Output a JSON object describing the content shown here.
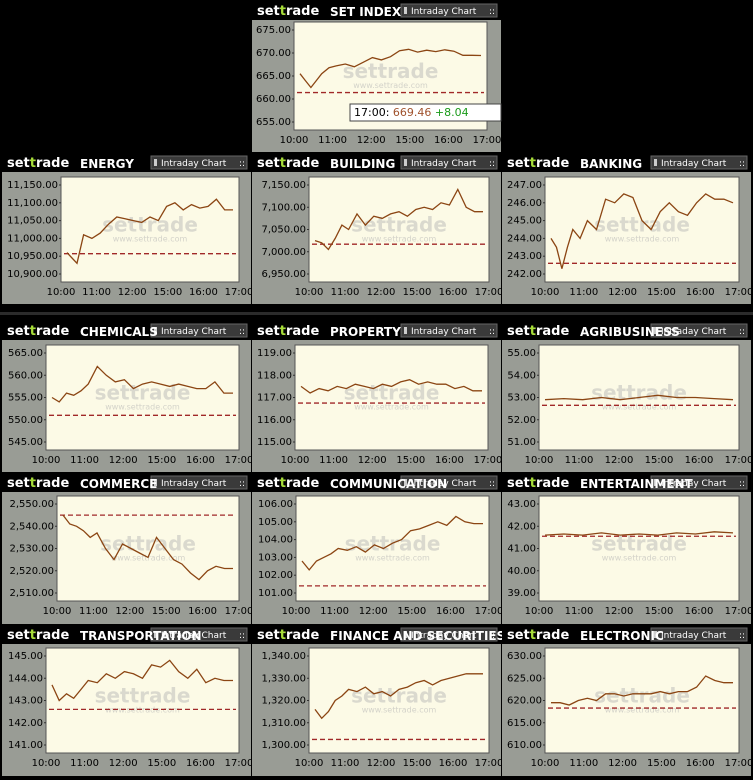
{
  "app": {
    "logo_prefix": "set",
    "logo_accent": "t",
    "logo_suffix": "rade",
    "button_label": "Intraday Chart",
    "watermark": "settrade",
    "watermark_url": "www.settrade.com"
  },
  "colors": {
    "background": "#000000",
    "panel": "#999c95",
    "plot_bg": "#fcfae6",
    "line": "#8b4513",
    "prior_close": "#a02828",
    "logo_accent": "#a8dd3a",
    "change_positive": "#1a9a1a"
  },
  "tooltip": {
    "time": "17:00",
    "value": "669.46",
    "change": "+8.04"
  },
  "chart_data": [
    {
      "title": "SET INDEX",
      "type": "line",
      "xticks": [
        "10:00",
        "11:00",
        "12:00",
        "15:00",
        "16:00",
        "17:00"
      ],
      "yticks": [
        "675.00",
        "670.00",
        "665.00",
        "660.00",
        "655.00"
      ],
      "ylim": [
        655,
        675
      ],
      "prior_close": 661.4,
      "x": [
        0,
        0.03,
        0.06,
        0.09,
        0.12,
        0.16,
        0.2,
        0.25,
        0.3,
        0.35,
        0.4,
        0.45,
        0.5,
        0.55,
        0.6,
        0.65,
        0.7,
        0.75,
        0.8,
        0.85,
        0.9,
        0.95,
        1
      ],
      "y": [
        665.5,
        664,
        662.5,
        664,
        665.5,
        666.8,
        667.2,
        667.6,
        667,
        668,
        669,
        668.5,
        669.2,
        670.5,
        670.8,
        670.2,
        670.6,
        670.3,
        670.7,
        670.4,
        669.5,
        669.5,
        669.46
      ]
    },
    {
      "title": "ENERGY",
      "type": "line",
      "xticks": [
        "10:00",
        "11:00",
        "12:00",
        "15:00",
        "16:00",
        "17:00"
      ],
      "yticks": [
        "11,150.00",
        "11,100.00",
        "11,050.00",
        "11,000.00",
        "10,950.00",
        "10,900.00"
      ],
      "ylim": [
        10900,
        11150
      ],
      "prior_close": 10957,
      "x": [
        0,
        0.03,
        0.06,
        0.1,
        0.15,
        0.2,
        0.25,
        0.3,
        0.35,
        0.4,
        0.45,
        0.5,
        0.55,
        0.6,
        0.65,
        0.7,
        0.75,
        0.8,
        0.85,
        0.9,
        0.95,
        1
      ],
      "y": [
        10960,
        10945,
        10930,
        11010,
        11000,
        11015,
        11040,
        11060,
        11055,
        11050,
        11045,
        11060,
        11050,
        11090,
        11100,
        11080,
        11095,
        11085,
        11090,
        11110,
        11080,
        11080
      ]
    },
    {
      "title": "BUILDING",
      "type": "line",
      "xticks": [
        "10:00",
        "11:00",
        "12:00",
        "15:00",
        "16:00",
        "17:00"
      ],
      "yticks": [
        "7,150.00",
        "7,100.00",
        "7,050.00",
        "7,000.00",
        "6,950.00"
      ],
      "ylim": [
        6950,
        7150
      ],
      "prior_close": 7017,
      "x": [
        0,
        0.04,
        0.08,
        0.12,
        0.16,
        0.2,
        0.25,
        0.3,
        0.35,
        0.4,
        0.45,
        0.5,
        0.55,
        0.6,
        0.65,
        0.7,
        0.75,
        0.8,
        0.85,
        0.9,
        0.95,
        1
      ],
      "y": [
        7025,
        7020,
        7005,
        7030,
        7060,
        7050,
        7085,
        7060,
        7080,
        7075,
        7085,
        7090,
        7080,
        7095,
        7100,
        7095,
        7110,
        7105,
        7140,
        7100,
        7090,
        7090
      ]
    },
    {
      "title": "BANKING",
      "type": "line",
      "xticks": [
        "10:00",
        "11:00",
        "12:00",
        "15:00",
        "16:00",
        "17:00"
      ],
      "yticks": [
        "247.00",
        "246.00",
        "245.00",
        "244.00",
        "243.00",
        "242.00"
      ],
      "ylim": [
        242,
        247
      ],
      "prior_close": 242.6,
      "x": [
        0,
        0.03,
        0.06,
        0.09,
        0.12,
        0.16,
        0.2,
        0.25,
        0.3,
        0.35,
        0.4,
        0.45,
        0.5,
        0.55,
        0.6,
        0.65,
        0.7,
        0.75,
        0.8,
        0.85,
        0.9,
        0.95,
        1
      ],
      "y": [
        244,
        243.5,
        242.3,
        243.5,
        244.5,
        244,
        245,
        244.5,
        246.2,
        246,
        246.5,
        246.3,
        245,
        244.5,
        245.5,
        246,
        245.5,
        245.3,
        246,
        246.5,
        246.2,
        246.2,
        246
      ]
    },
    {
      "title": "CHEMICALS",
      "type": "line",
      "xticks": [
        "10:00",
        "11:00",
        "12:00",
        "15:00",
        "16:00",
        "17:00"
      ],
      "yticks": [
        "565.00",
        "560.00",
        "555.00",
        "550.00",
        "545.00"
      ],
      "ylim": [
        545,
        565
      ],
      "prior_close": 551,
      "x": [
        0,
        0.04,
        0.08,
        0.12,
        0.16,
        0.2,
        0.25,
        0.3,
        0.35,
        0.4,
        0.45,
        0.5,
        0.55,
        0.6,
        0.65,
        0.7,
        0.75,
        0.8,
        0.85,
        0.9,
        0.95,
        1
      ],
      "y": [
        555,
        554,
        556,
        555.5,
        556.5,
        558,
        562,
        560,
        558.5,
        559,
        557,
        558,
        558.5,
        558,
        557.5,
        558,
        557.5,
        557,
        557,
        558.5,
        556,
        556
      ]
    },
    {
      "title": "PROPERTY",
      "type": "line",
      "xticks": [
        "10:00",
        "11:00",
        "12:00",
        "15:00",
        "16:00",
        "17:00"
      ],
      "yticks": [
        "119.00",
        "118.00",
        "117.00",
        "116.00",
        "115.00"
      ],
      "ylim": [
        115,
        119
      ],
      "prior_close": 116.75,
      "x": [
        0,
        0.05,
        0.1,
        0.15,
        0.2,
        0.25,
        0.3,
        0.35,
        0.4,
        0.45,
        0.5,
        0.55,
        0.6,
        0.65,
        0.7,
        0.75,
        0.8,
        0.85,
        0.9,
        0.95,
        1
      ],
      "y": [
        117.5,
        117.2,
        117.4,
        117.3,
        117.5,
        117.4,
        117.6,
        117.5,
        117.4,
        117.6,
        117.5,
        117.7,
        117.8,
        117.6,
        117.7,
        117.6,
        117.6,
        117.4,
        117.5,
        117.3,
        117.3
      ]
    },
    {
      "title": "AGRIBUSINESS",
      "type": "line",
      "xticks": [
        "10:00",
        "11:00",
        "12:00",
        "15:00",
        "16:00",
        "17:00"
      ],
      "yticks": [
        "55.00",
        "54.00",
        "53.00",
        "52.00",
        "51.00"
      ],
      "ylim": [
        51,
        55
      ],
      "prior_close": 52.65,
      "x": [
        0,
        0.1,
        0.2,
        0.3,
        0.4,
        0.5,
        0.6,
        0.7,
        0.8,
        0.9,
        1
      ],
      "y": [
        52.9,
        52.95,
        52.9,
        53,
        52.9,
        53,
        53.1,
        53,
        53,
        52.95,
        52.9
      ]
    },
    {
      "title": "COMMERCE",
      "type": "line",
      "xticks": [
        "10:00",
        "11:00",
        "12:00",
        "15:00",
        "16:00",
        "17:00"
      ],
      "yticks": [
        "2,550.00",
        "2,540.00",
        "2,530.00",
        "2,520.00",
        "2,510.00"
      ],
      "ylim": [
        2510,
        2550
      ],
      "prior_close": 2545,
      "x": [
        0,
        0.04,
        0.08,
        0.12,
        0.16,
        0.2,
        0.25,
        0.3,
        0.35,
        0.4,
        0.45,
        0.5,
        0.55,
        0.6,
        0.65,
        0.7,
        0.75,
        0.8,
        0.85,
        0.9,
        0.95,
        1
      ],
      "y": [
        2545,
        2541,
        2540,
        2538,
        2535,
        2537,
        2530,
        2525,
        2532,
        2530,
        2528,
        2526,
        2535,
        2530,
        2525,
        2523,
        2519,
        2516,
        2520,
        2522,
        2521,
        2521
      ]
    },
    {
      "title": "COMMUNICATION",
      "type": "line",
      "xticks": [
        "10:00",
        "11:00",
        "12:00",
        "15:00",
        "16:00",
        "17:00"
      ],
      "yticks": [
        "106.00",
        "105.00",
        "104.00",
        "103.00",
        "102.00",
        "101.00"
      ],
      "ylim": [
        101,
        106
      ],
      "prior_close": 101.4,
      "x": [
        0,
        0.04,
        0.08,
        0.12,
        0.16,
        0.2,
        0.25,
        0.3,
        0.35,
        0.4,
        0.45,
        0.5,
        0.55,
        0.6,
        0.65,
        0.7,
        0.75,
        0.8,
        0.85,
        0.9,
        0.95,
        1
      ],
      "y": [
        102.8,
        102.3,
        102.8,
        103,
        103.2,
        103.5,
        103.4,
        103.6,
        103.3,
        103.7,
        103.5,
        103.8,
        104,
        104.5,
        104.6,
        104.8,
        105,
        104.8,
        105.3,
        105,
        104.9,
        104.9
      ]
    },
    {
      "title": "ENTERTAINMENT",
      "type": "line",
      "xticks": [
        "10:00",
        "11:00",
        "12:00",
        "15:00",
        "16:00",
        "17:00"
      ],
      "yticks": [
        "43.00",
        "42.00",
        "41.00",
        "40.00",
        "39.00"
      ],
      "ylim": [
        39,
        43
      ],
      "prior_close": 41.55,
      "x": [
        0,
        0.1,
        0.2,
        0.3,
        0.4,
        0.5,
        0.6,
        0.7,
        0.8,
        0.9,
        1
      ],
      "y": [
        41.6,
        41.65,
        41.6,
        41.7,
        41.6,
        41.65,
        41.6,
        41.7,
        41.65,
        41.75,
        41.7
      ]
    },
    {
      "title": "TRANSPORTATION",
      "type": "line",
      "xticks": [
        "10:00",
        "11:00",
        "12:00",
        "15:00",
        "16:00",
        "17:00"
      ],
      "yticks": [
        "145.00",
        "144.00",
        "143.00",
        "142.00",
        "141.00"
      ],
      "ylim": [
        141,
        145
      ],
      "prior_close": 142.6,
      "x": [
        0,
        0.04,
        0.08,
        0.12,
        0.16,
        0.2,
        0.25,
        0.3,
        0.35,
        0.4,
        0.45,
        0.5,
        0.55,
        0.6,
        0.65,
        0.7,
        0.75,
        0.8,
        0.85,
        0.9,
        0.95,
        1
      ],
      "y": [
        143.7,
        143,
        143.3,
        143.1,
        143.5,
        143.9,
        143.8,
        144.2,
        144,
        144.3,
        144.2,
        144,
        144.6,
        144.5,
        144.8,
        144.3,
        144,
        144.4,
        143.8,
        144,
        143.9,
        143.9
      ]
    },
    {
      "title": "FINANCE AND SECURITIES",
      "type": "line",
      "xticks": [
        "10:00",
        "11:00",
        "12:00",
        "15:00",
        "16:00",
        "17:00"
      ],
      "yticks": [
        "1,340.00",
        "1,330.00",
        "1,320.00",
        "1,310.00",
        "1,300.00"
      ],
      "ylim": [
        1300,
        1340
      ],
      "prior_close": 1302.5,
      "x": [
        0,
        0.04,
        0.08,
        0.12,
        0.16,
        0.2,
        0.25,
        0.3,
        0.35,
        0.4,
        0.45,
        0.5,
        0.55,
        0.6,
        0.65,
        0.7,
        0.75,
        0.8,
        0.85,
        0.9,
        0.95,
        1
      ],
      "y": [
        1316,
        1312,
        1315,
        1320,
        1322,
        1325,
        1324,
        1326,
        1323,
        1324,
        1322,
        1325,
        1326,
        1328,
        1329,
        1327,
        1329,
        1330,
        1331,
        1332,
        1332,
        1332
      ]
    },
    {
      "title": "ELECTRONIC",
      "type": "line",
      "xticks": [
        "10:00",
        "11:00",
        "12:00",
        "15:00",
        "16:00",
        "17:00"
      ],
      "yticks": [
        "630.00",
        "625.00",
        "620.00",
        "615.00",
        "610.00"
      ],
      "ylim": [
        610,
        630
      ],
      "prior_close": 618.3,
      "x": [
        0,
        0.05,
        0.1,
        0.15,
        0.2,
        0.25,
        0.3,
        0.35,
        0.4,
        0.45,
        0.5,
        0.55,
        0.6,
        0.65,
        0.7,
        0.75,
        0.8,
        0.85,
        0.9,
        0.95,
        1
      ],
      "y": [
        619.5,
        619.5,
        619,
        620,
        620.5,
        620,
        621.5,
        621.5,
        621,
        621.5,
        621.5,
        621.5,
        622,
        621.5,
        622,
        622,
        623,
        625.5,
        624.5,
        624,
        624
      ]
    }
  ]
}
